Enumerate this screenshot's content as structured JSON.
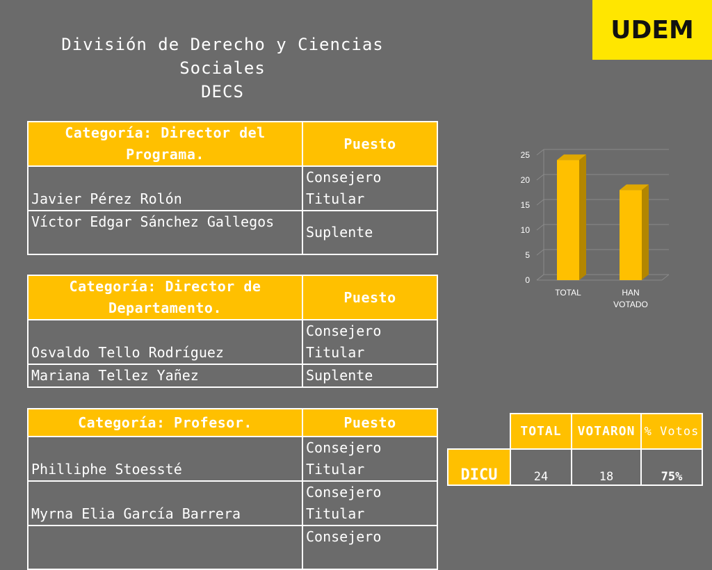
{
  "logo": {
    "text": "UDEM",
    "color": "#ffe600"
  },
  "title": {
    "line1": "División de Derecho y Ciencias",
    "line2": "Sociales",
    "line3": "DECS"
  },
  "tables": [
    {
      "header": "Categoría: Director del Programa.",
      "puesto_header": "Puesto",
      "rows": [
        {
          "name": "Javier Pérez Rolón",
          "puesto": "Consejero Titular"
        },
        {
          "name": "Víctor Edgar Sánchez Gallegos",
          "puesto": "Suplente"
        }
      ]
    },
    {
      "header": "Categoría: Director de Departamento.",
      "puesto_header": "Puesto",
      "rows": [
        {
          "name": "Osvaldo Tello Rodríguez",
          "puesto": "Consejero Titular"
        },
        {
          "name": "Mariana Tellez Yañez",
          "puesto": "Suplente"
        }
      ]
    },
    {
      "header": "Categoría: Profesor.",
      "puesto_header": "Puesto",
      "rows": [
        {
          "name": "Philliphe Stoessté",
          "puesto": "Consejero Titular"
        },
        {
          "name": "Myrna Elia García Barrera",
          "puesto": "Consejero Titular"
        },
        {
          "name": "",
          "puesto": "Consejero"
        }
      ]
    }
  ],
  "results": {
    "headers": [
      "TOTAL",
      "VOTARON",
      "% Votos"
    ],
    "row_label": "DICU",
    "values": [
      "24",
      "18",
      "75%"
    ]
  },
  "chart_data": {
    "type": "bar",
    "categories": [
      "TOTAL",
      "HAN VOTADO"
    ],
    "values": [
      24,
      18
    ],
    "ylim": [
      0,
      25
    ],
    "yticks": [
      0,
      5,
      10,
      15,
      20,
      25
    ],
    "title": "",
    "xlabel": "",
    "ylabel": "",
    "color": "#ffc000",
    "grid": true
  }
}
